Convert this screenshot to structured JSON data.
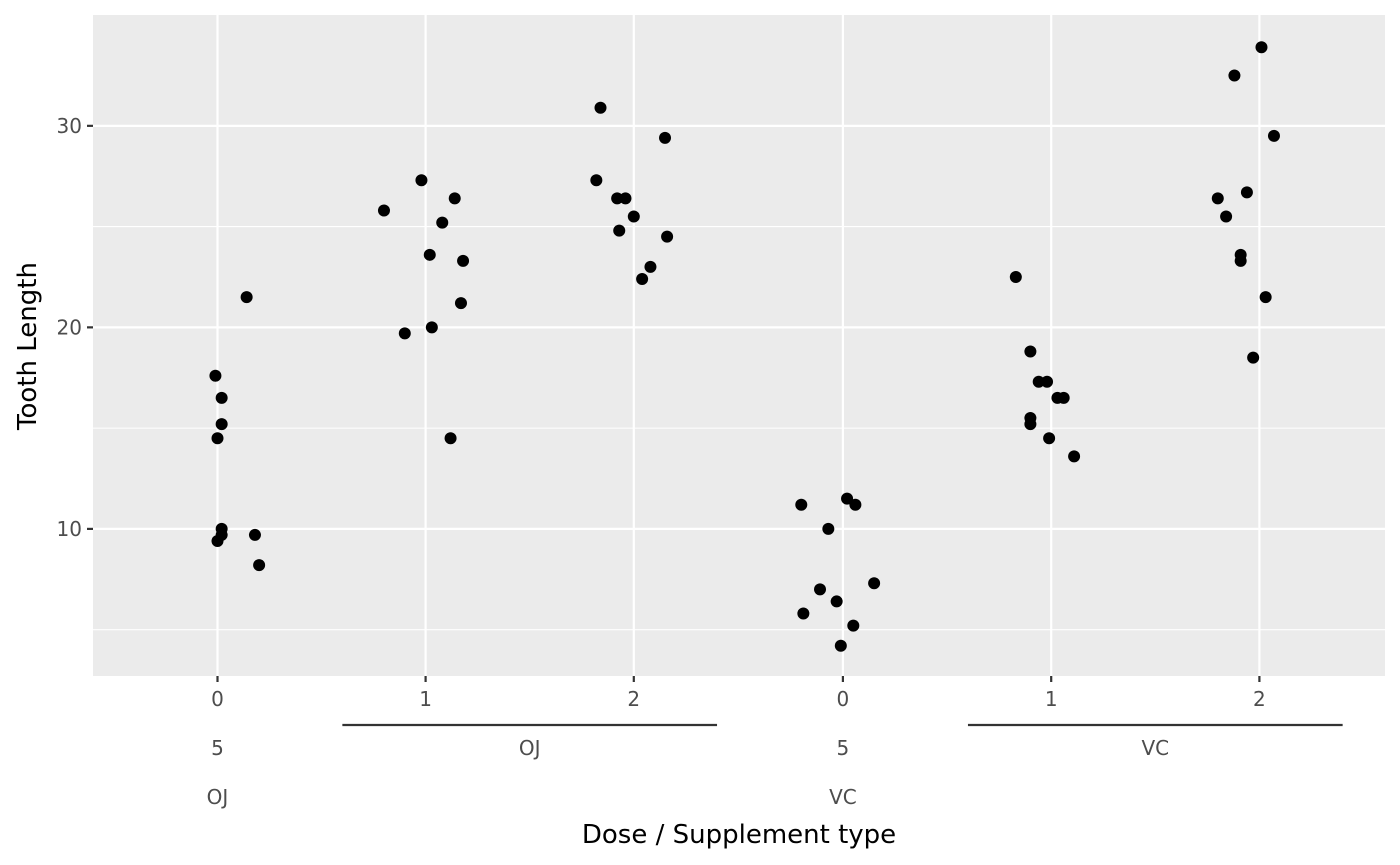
{
  "chart_data": {
    "type": "scatter",
    "xlabel": "Dose / Supplement type",
    "ylabel": "Tooth Length",
    "ylim": [
      2.7,
      35.5
    ],
    "y_ticks": [
      10,
      20,
      30
    ],
    "y_tick_labels": [
      "10",
      "20",
      "30"
    ],
    "y_minor_ticks": [
      5,
      15,
      25
    ],
    "grid": true,
    "x_positions": [
      {
        "label": "0",
        "supp_group": 0
      },
      {
        "label": "1",
        "supp_group": 0
      },
      {
        "label": "2",
        "supp_group": 0
      },
      {
        "label": "0",
        "supp_group": 1
      },
      {
        "label": "1",
        "supp_group": 1
      },
      {
        "label": "2",
        "supp_group": 1
      }
    ],
    "nested_labels": [
      {
        "level": 2,
        "label": "5",
        "position": 0,
        "line": false
      },
      {
        "level": 2,
        "label": "OJ",
        "from": 1,
        "to": 2,
        "line": true
      },
      {
        "level": 2,
        "label": "5",
        "position": 3,
        "line": false
      },
      {
        "level": 2,
        "label": "VC",
        "from": 4,
        "to": 5,
        "line": true
      },
      {
        "level": 3,
        "label": "OJ",
        "position": 0,
        "line": false
      },
      {
        "level": 3,
        "label": "VC",
        "position": 3,
        "line": false
      }
    ],
    "points": [
      {
        "x": -0.01,
        "y": 17.6
      },
      {
        "x": 0.02,
        "y": 16.5
      },
      {
        "x": 0.02,
        "y": 15.2
      },
      {
        "x": 0.0,
        "y": 14.5
      },
      {
        "x": 0.14,
        "y": 21.5
      },
      {
        "x": 0.02,
        "y": 10.0
      },
      {
        "x": 0.02,
        "y": 9.7
      },
      {
        "x": 0.0,
        "y": 9.4
      },
      {
        "x": 0.18,
        "y": 9.7
      },
      {
        "x": 0.2,
        "y": 8.2
      },
      {
        "x": 0.8,
        "y": 25.8
      },
      {
        "x": 0.98,
        "y": 27.3
      },
      {
        "x": 1.14,
        "y": 26.4
      },
      {
        "x": 1.08,
        "y": 25.2
      },
      {
        "x": 1.02,
        "y": 23.6
      },
      {
        "x": 1.18,
        "y": 23.3
      },
      {
        "x": 1.17,
        "y": 21.2
      },
      {
        "x": 1.03,
        "y": 20.0
      },
      {
        "x": 0.9,
        "y": 19.7
      },
      {
        "x": 1.12,
        "y": 14.5
      },
      {
        "x": 1.84,
        "y": 30.9
      },
      {
        "x": 2.15,
        "y": 29.4
      },
      {
        "x": 1.82,
        "y": 27.3
      },
      {
        "x": 1.92,
        "y": 26.4
      },
      {
        "x": 1.96,
        "y": 26.4
      },
      {
        "x": 2.0,
        "y": 25.5
      },
      {
        "x": 1.93,
        "y": 24.8
      },
      {
        "x": 2.16,
        "y": 24.5
      },
      {
        "x": 2.08,
        "y": 23.0
      },
      {
        "x": 2.04,
        "y": 22.4
      },
      {
        "x": -0.2,
        "y": 11.2
      },
      {
        "x": 0.02,
        "y": 11.5
      },
      {
        "x": 0.06,
        "y": 11.2
      },
      {
        "x": -0.07,
        "y": 10.0
      },
      {
        "x": 0.15,
        "y": 7.3
      },
      {
        "x": -0.11,
        "y": 7.0
      },
      {
        "x": -0.03,
        "y": 6.4
      },
      {
        "x": -0.19,
        "y": 5.8
      },
      {
        "x": 0.05,
        "y": 5.2
      },
      {
        "x": -0.01,
        "y": 4.2
      },
      {
        "x": 0.83,
        "y": 22.5
      },
      {
        "x": 0.9,
        "y": 18.8
      },
      {
        "x": 0.94,
        "y": 17.3
      },
      {
        "x": 0.98,
        "y": 17.3
      },
      {
        "x": 1.03,
        "y": 16.5
      },
      {
        "x": 1.06,
        "y": 16.5
      },
      {
        "x": 0.9,
        "y": 15.5
      },
      {
        "x": 0.9,
        "y": 15.2
      },
      {
        "x": 0.99,
        "y": 14.5
      },
      {
        "x": 1.11,
        "y": 13.6
      },
      {
        "x": 2.01,
        "y": 33.9
      },
      {
        "x": 1.88,
        "y": 32.5
      },
      {
        "x": 2.07,
        "y": 29.5
      },
      {
        "x": 1.94,
        "y": 26.7
      },
      {
        "x": 1.8,
        "y": 26.4
      },
      {
        "x": 1.84,
        "y": 25.5
      },
      {
        "x": 1.91,
        "y": 23.6
      },
      {
        "x": 1.91,
        "y": 23.3
      },
      {
        "x": 2.03,
        "y": 21.5
      },
      {
        "x": 1.97,
        "y": 18.5
      }
    ]
  }
}
